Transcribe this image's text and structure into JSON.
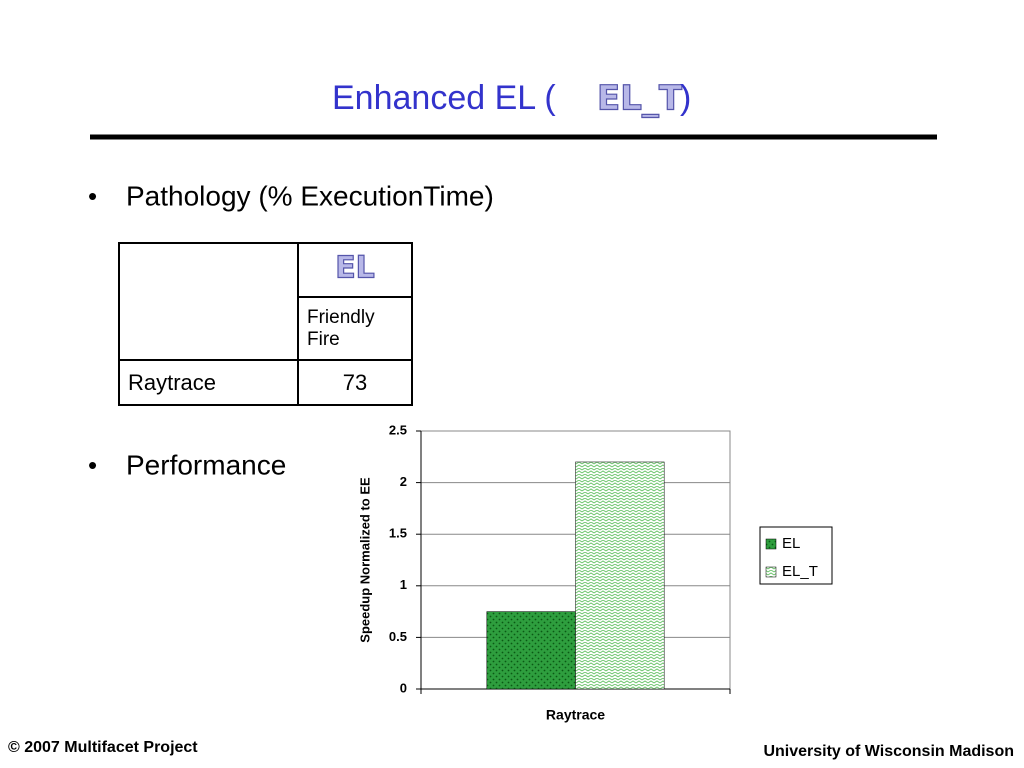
{
  "title": "Enhanced EL (",
  "title_logo": "EL_T",
  "title_end": ")",
  "bullets": [
    "Pathology (% ExecutionTime)",
    "Performance"
  ],
  "table": {
    "header_logo": "EL",
    "subheader": "Friendly Fire",
    "rows": [
      [
        "Raytrace",
        "73"
      ]
    ]
  },
  "chart_data": {
    "type": "bar",
    "categories": [
      "Raytrace"
    ],
    "series": [
      {
        "name": "EL",
        "color": "#2e9e3e",
        "values": [
          0.75
        ]
      },
      {
        "name": "EL_T",
        "color": "#6cc46c",
        "values": [
          2.2
        ]
      }
    ],
    "ylim": [
      0,
      2.5
    ],
    "yticks": [
      0,
      0.5,
      1,
      1.5,
      2,
      2.5
    ],
    "grid": true,
    "ylabel": "Speedup Normalized to EE",
    "legend": "right"
  },
  "footer": {
    "left": "© 2007 Multifacet Project",
    "right": "University of Wisconsin Madison"
  }
}
